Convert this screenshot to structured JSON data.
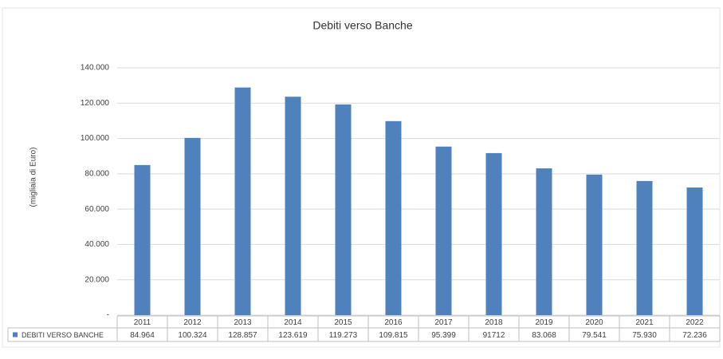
{
  "chart_data": {
    "type": "bar",
    "title": "Debiti verso Banche",
    "y_label": "(migliaia di Euro)",
    "categories": [
      "2011",
      "2012",
      "2013",
      "2014",
      "2015",
      "2016",
      "2017",
      "2018",
      "2019",
      "2020",
      "2021",
      "2022"
    ],
    "series": [
      {
        "name": "DEBITI VERSO BANCHE",
        "color": "#4f81bd",
        "values": [
          84964,
          100324,
          128857,
          123619,
          119273,
          109815,
          95399,
          91712,
          83068,
          79541,
          75930,
          72236
        ],
        "value_labels": [
          "84.964",
          "100.324",
          "128.857",
          "123.619",
          "119.273",
          "109.815",
          "95.399",
          "91712",
          "83.068",
          "79.541",
          "75.930",
          "72.236"
        ]
      }
    ],
    "ylim": [
      0,
      140000
    ],
    "yticks": [
      {
        "value": 0,
        "label": "-"
      },
      {
        "value": 20000,
        "label": "20.000"
      },
      {
        "value": 40000,
        "label": "40.000"
      },
      {
        "value": 60000,
        "label": "60.000"
      },
      {
        "value": 80000,
        "label": "80.000"
      },
      {
        "value": 100000,
        "label": "100.000"
      },
      {
        "value": 120000,
        "label": "120.000"
      },
      {
        "value": 140000,
        "label": "140.000"
      }
    ],
    "grid": true
  }
}
